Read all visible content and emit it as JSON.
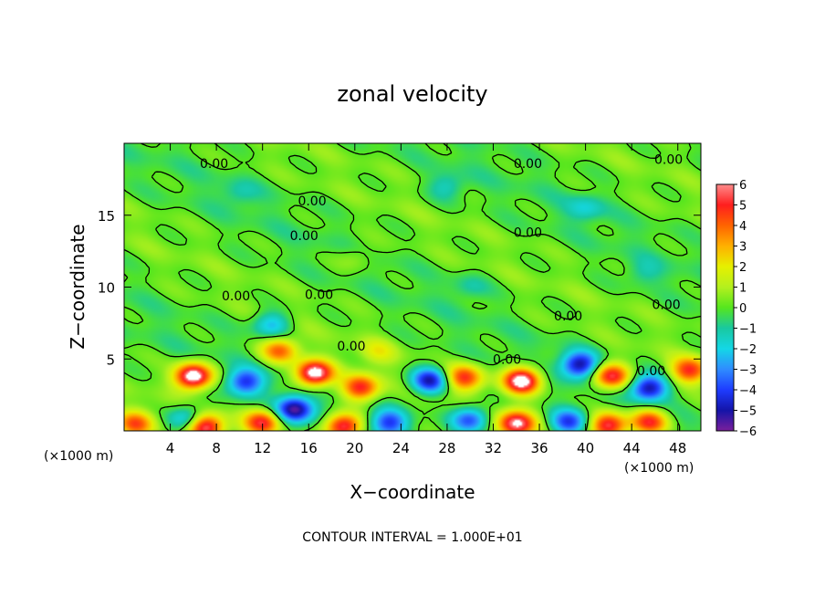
{
  "chart_data": {
    "type": "heatmap",
    "title": "zonal velocity",
    "xlabel": "X−coordinate",
    "ylabel": "Z−coordinate",
    "x_unit_left": "(×1000 m)",
    "x_unit_right": "(×1000 m)",
    "xlim": [
      0,
      50
    ],
    "ylim": [
      0,
      20
    ],
    "x_ticks": [
      4,
      8,
      12,
      16,
      20,
      24,
      28,
      32,
      36,
      40,
      44,
      48
    ],
    "y_ticks": [
      5,
      10,
      15
    ],
    "colorbar": {
      "min": -6,
      "max": 6,
      "ticks": [
        6,
        5,
        4,
        3,
        2,
        1,
        0,
        -1,
        -2,
        -3,
        -4,
        -5,
        -6
      ],
      "tick_labels": [
        "6",
        "5",
        "4",
        "3",
        "2",
        "1",
        "0",
        "−1",
        "−2",
        "−3",
        "−4",
        "−5",
        "−6"
      ]
    },
    "contour_label_text": "0.00",
    "contour_labels": [
      {
        "x": 7.8,
        "z": 18.6
      },
      {
        "x": 16.3,
        "z": 16.0
      },
      {
        "x": 15.6,
        "z": 13.6
      },
      {
        "x": 9.7,
        "z": 9.4
      },
      {
        "x": 16.9,
        "z": 9.5
      },
      {
        "x": 19.7,
        "z": 5.9
      },
      {
        "x": 35.0,
        "z": 18.6
      },
      {
        "x": 47.2,
        "z": 18.9
      },
      {
        "x": 35.0,
        "z": 13.8
      },
      {
        "x": 38.5,
        "z": 8.0
      },
      {
        "x": 47.0,
        "z": 8.8
      },
      {
        "x": 33.2,
        "z": 5.0
      },
      {
        "x": 45.7,
        "z": 4.2
      }
    ],
    "anomalies": [
      {
        "x": 6.0,
        "z": 3.8,
        "value": 7.2
      },
      {
        "x": 16.5,
        "z": 4.0,
        "value": 7.0
      },
      {
        "x": 20.5,
        "z": 3.0,
        "value": 5.0
      },
      {
        "x": 13.5,
        "z": 5.6,
        "value": 4.0
      },
      {
        "x": 10.5,
        "z": 3.4,
        "value": -4.0
      },
      {
        "x": 14.8,
        "z": 1.5,
        "value": -5.5
      },
      {
        "x": 26.5,
        "z": 3.5,
        "value": -5.0
      },
      {
        "x": 29.5,
        "z": 3.7,
        "value": 4.5
      },
      {
        "x": 34.5,
        "z": 3.5,
        "value": 7.0
      },
      {
        "x": 39.5,
        "z": 4.6,
        "value": -5.0
      },
      {
        "x": 42.2,
        "z": 3.8,
        "value": 5.5
      },
      {
        "x": 45.5,
        "z": 3.0,
        "value": -5.0
      },
      {
        "x": 49.0,
        "z": 4.2,
        "value": 4.5
      },
      {
        "x": 5.5,
        "z": 0.8,
        "value": -3.0
      },
      {
        "x": 7.0,
        "z": 0.3,
        "value": 6.0
      },
      {
        "x": 12.0,
        "z": 0.6,
        "value": 5.0
      },
      {
        "x": 19.0,
        "z": 0.3,
        "value": 6.0
      },
      {
        "x": 23.0,
        "z": 0.6,
        "value": -4.0
      },
      {
        "x": 30.0,
        "z": 0.8,
        "value": -4.0
      },
      {
        "x": 34.0,
        "z": 0.5,
        "value": 6.0
      },
      {
        "x": 38.5,
        "z": 0.6,
        "value": -4.0
      },
      {
        "x": 42.0,
        "z": 0.4,
        "value": 5.5
      },
      {
        "x": 45.5,
        "z": 0.6,
        "value": 5.0
      },
      {
        "x": 1.0,
        "z": 0.5,
        "value": 4.0
      },
      {
        "x": 12.8,
        "z": 7.4,
        "value": -2.5
      },
      {
        "x": 22.0,
        "z": 5.5,
        "value": 1.5
      },
      {
        "x": 20.0,
        "z": 12.0,
        "value": 1.0
      },
      {
        "x": 28.0,
        "z": 17.0,
        "value": -1.5
      },
      {
        "x": 10.0,
        "z": 16.5,
        "value": -1.0
      },
      {
        "x": 40.0,
        "z": 15.5,
        "value": -1.5
      },
      {
        "x": 30.0,
        "z": 10.0,
        "value": -1.0
      },
      {
        "x": 45.0,
        "z": 11.0,
        "value": -1.0
      }
    ]
  },
  "footer": "CONTOUR INTERVAL = 1.000E+01",
  "colors": {
    "palette": [
      "#7a1f9c",
      "#1414a8",
      "#1e3cff",
      "#2f8cff",
      "#14d7e6",
      "#19c8a0",
      "#55e61e",
      "#b4f01e",
      "#e6f000",
      "#ffb000",
      "#ff6400",
      "#ff1e1e",
      "#ff8c8c"
    ]
  }
}
